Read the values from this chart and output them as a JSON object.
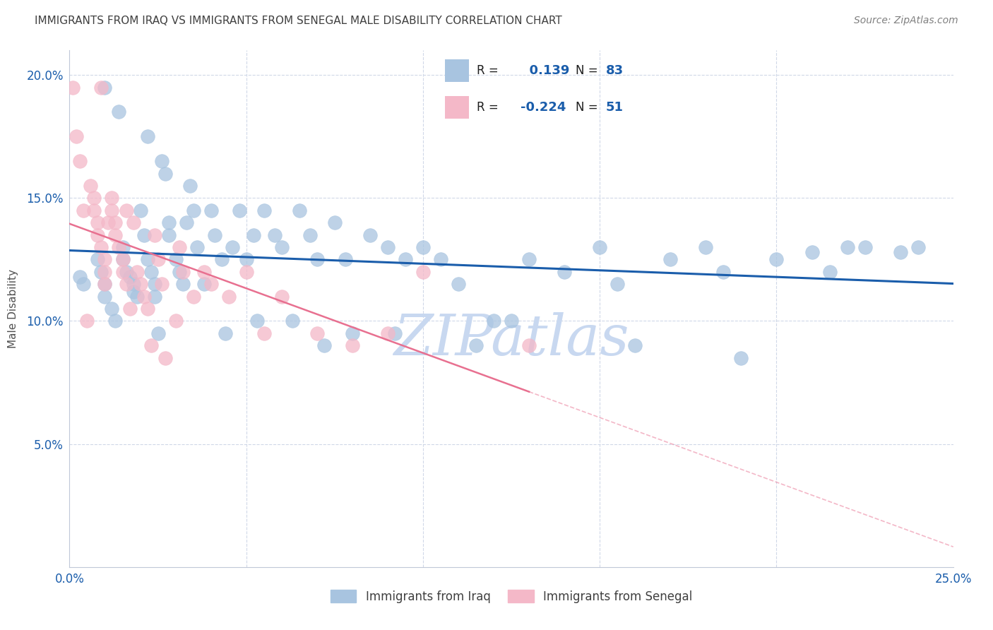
{
  "title": "IMMIGRANTS FROM IRAQ VS IMMIGRANTS FROM SENEGAL MALE DISABILITY CORRELATION CHART",
  "source": "Source: ZipAtlas.com",
  "ylabel": "Male Disability",
  "xlim": [
    0.0,
    0.25
  ],
  "ylim": [
    0.0,
    0.21
  ],
  "ytick_labels": [
    "",
    "5.0%",
    "10.0%",
    "15.0%",
    "20.0%"
  ],
  "ytick_values": [
    0.0,
    0.05,
    0.1,
    0.15,
    0.2
  ],
  "xtick_labels": [
    "0.0%",
    "",
    "",
    "",
    "",
    "25.0%"
  ],
  "xtick_values": [
    0.0,
    0.05,
    0.1,
    0.15,
    0.2,
    0.25
  ],
  "iraq_color": "#a8c4e0",
  "senegal_color": "#f4b8c8",
  "iraq_R": 0.139,
  "iraq_N": 83,
  "senegal_R": -0.224,
  "senegal_N": 51,
  "iraq_line_color": "#1a5dab",
  "senegal_line_color": "#e87090",
  "background_color": "#ffffff",
  "grid_color": "#d0d8e8",
  "title_color": "#404040",
  "legend_val_color": "#1a5dab",
  "watermark_color": "#c8d8f0",
  "iraq_x": [
    0.003,
    0.004,
    0.008,
    0.009,
    0.01,
    0.01,
    0.01,
    0.012,
    0.013,
    0.014,
    0.015,
    0.015,
    0.016,
    0.017,
    0.018,
    0.018,
    0.019,
    0.02,
    0.021,
    0.022,
    0.022,
    0.023,
    0.024,
    0.024,
    0.025,
    0.026,
    0.027,
    0.028,
    0.028,
    0.03,
    0.031,
    0.032,
    0.033,
    0.034,
    0.035,
    0.036,
    0.038,
    0.04,
    0.041,
    0.043,
    0.044,
    0.046,
    0.048,
    0.05,
    0.052,
    0.053,
    0.055,
    0.058,
    0.06,
    0.063,
    0.065,
    0.068,
    0.07,
    0.072,
    0.075,
    0.078,
    0.08,
    0.085,
    0.09,
    0.092,
    0.095,
    0.1,
    0.105,
    0.11,
    0.115,
    0.12,
    0.125,
    0.13,
    0.14,
    0.15,
    0.155,
    0.16,
    0.17,
    0.18,
    0.185,
    0.19,
    0.2,
    0.21,
    0.215,
    0.22,
    0.225,
    0.235,
    0.24
  ],
  "iraq_y": [
    0.118,
    0.115,
    0.125,
    0.12,
    0.115,
    0.195,
    0.11,
    0.105,
    0.1,
    0.185,
    0.13,
    0.125,
    0.12,
    0.118,
    0.115,
    0.112,
    0.11,
    0.145,
    0.135,
    0.175,
    0.125,
    0.12,
    0.115,
    0.11,
    0.095,
    0.165,
    0.16,
    0.14,
    0.135,
    0.125,
    0.12,
    0.115,
    0.14,
    0.155,
    0.145,
    0.13,
    0.115,
    0.145,
    0.135,
    0.125,
    0.095,
    0.13,
    0.145,
    0.125,
    0.135,
    0.1,
    0.145,
    0.135,
    0.13,
    0.1,
    0.145,
    0.135,
    0.125,
    0.09,
    0.14,
    0.125,
    0.095,
    0.135,
    0.13,
    0.095,
    0.125,
    0.13,
    0.125,
    0.115,
    0.09,
    0.1,
    0.1,
    0.125,
    0.12,
    0.13,
    0.115,
    0.09,
    0.125,
    0.13,
    0.12,
    0.085,
    0.125,
    0.128,
    0.12,
    0.13,
    0.13,
    0.128,
    0.13
  ],
  "senegal_x": [
    0.001,
    0.002,
    0.003,
    0.004,
    0.005,
    0.006,
    0.007,
    0.007,
    0.008,
    0.008,
    0.009,
    0.009,
    0.01,
    0.01,
    0.01,
    0.011,
    0.012,
    0.012,
    0.013,
    0.013,
    0.014,
    0.015,
    0.015,
    0.016,
    0.016,
    0.017,
    0.018,
    0.019,
    0.02,
    0.021,
    0.022,
    0.023,
    0.024,
    0.025,
    0.026,
    0.027,
    0.03,
    0.031,
    0.032,
    0.035,
    0.038,
    0.04,
    0.045,
    0.05,
    0.055,
    0.06,
    0.07,
    0.08,
    0.09,
    0.1,
    0.13
  ],
  "senegal_y": [
    0.195,
    0.175,
    0.165,
    0.145,
    0.1,
    0.155,
    0.15,
    0.145,
    0.14,
    0.135,
    0.13,
    0.195,
    0.125,
    0.12,
    0.115,
    0.14,
    0.15,
    0.145,
    0.14,
    0.135,
    0.13,
    0.125,
    0.12,
    0.115,
    0.145,
    0.105,
    0.14,
    0.12,
    0.115,
    0.11,
    0.105,
    0.09,
    0.135,
    0.125,
    0.115,
    0.085,
    0.1,
    0.13,
    0.12,
    0.11,
    0.12,
    0.115,
    0.11,
    0.12,
    0.095,
    0.11,
    0.095,
    0.09,
    0.095,
    0.12,
    0.09
  ]
}
